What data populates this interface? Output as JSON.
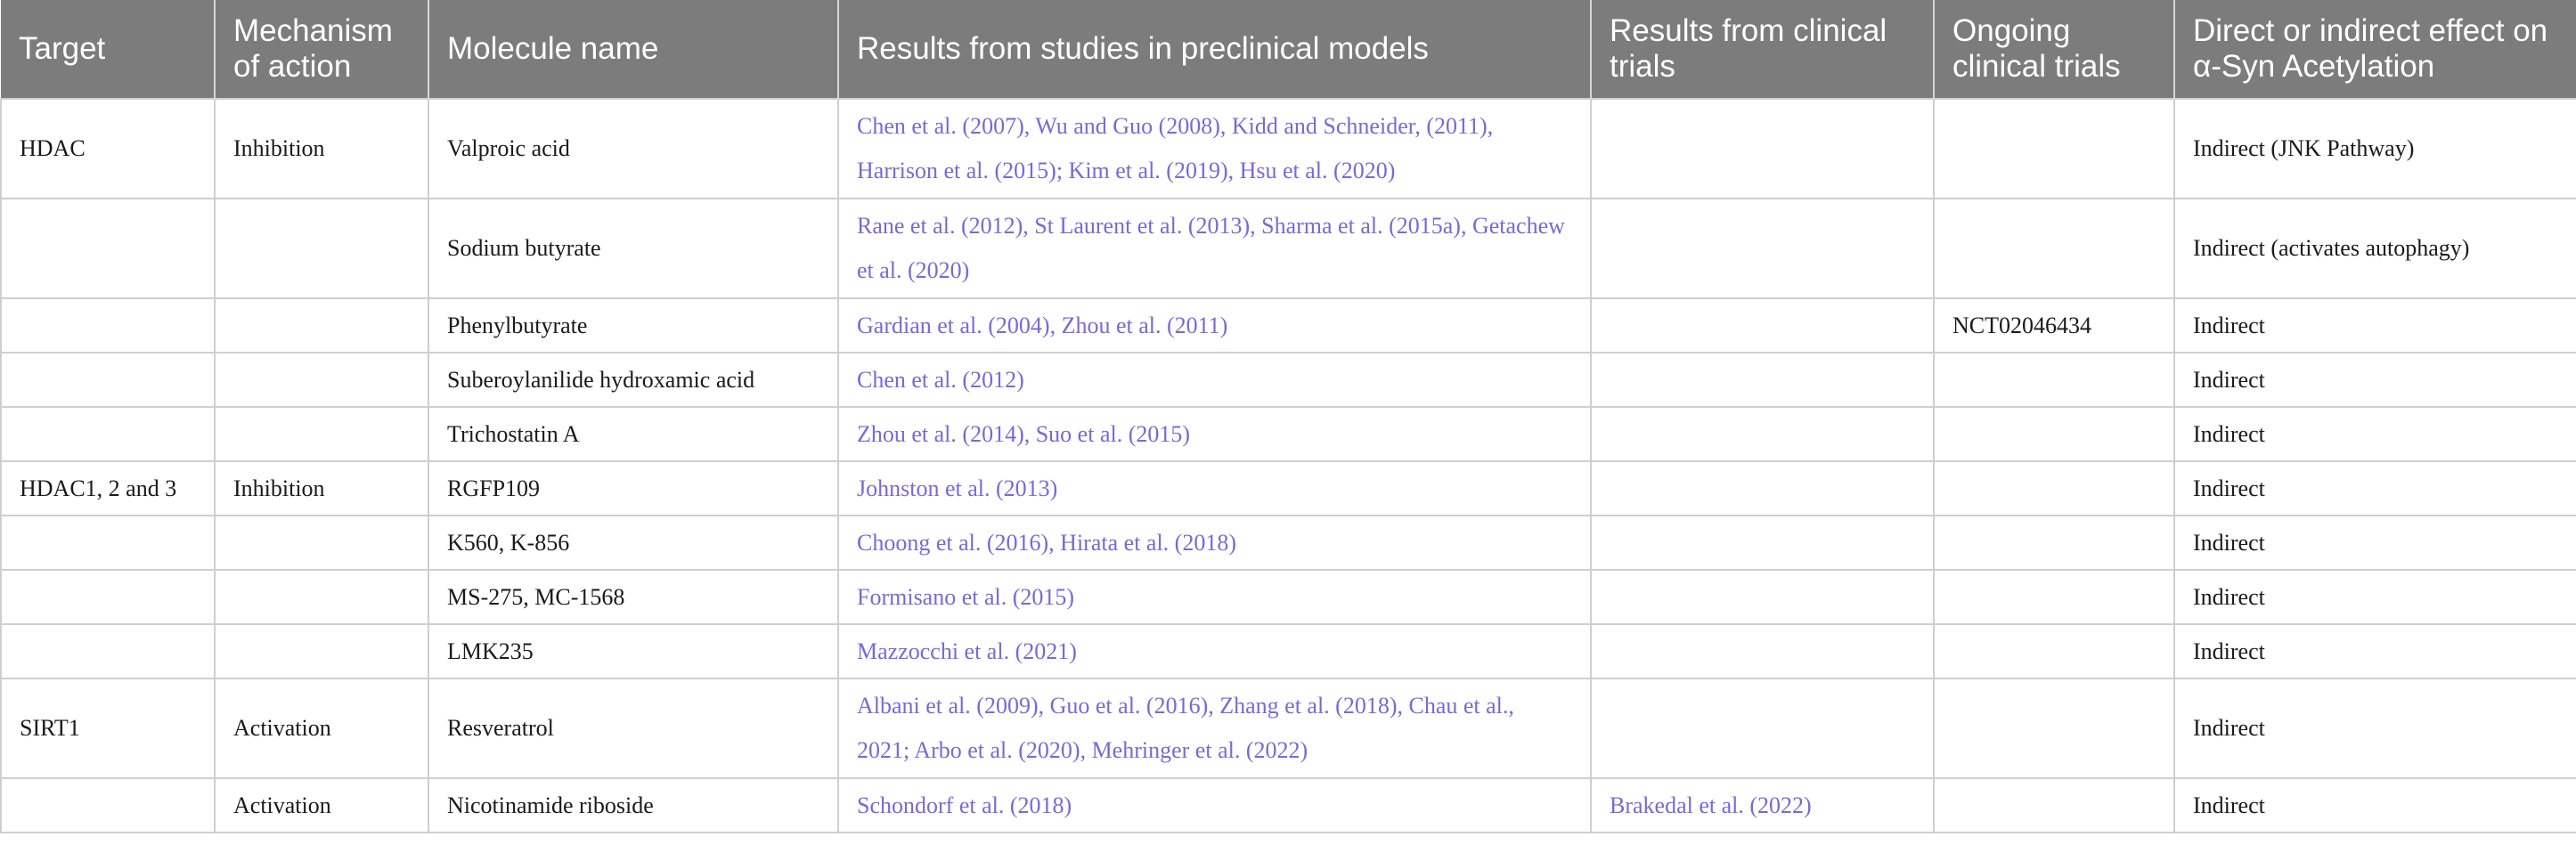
{
  "table": {
    "headers": [
      "Target",
      "Mechanism of action",
      "Molecule name",
      "Results from studies in preclinical models",
      "Results from clinical trials",
      "Ongoing clinical trials",
      "Direct or indirect effect on α-Syn Acetylation"
    ],
    "rows": [
      {
        "target": "HDAC",
        "mechanism": "Inhibition",
        "molecule": "Valproic acid",
        "preclinical": "Chen et al. (2007), Wu and Guo (2008), Kidd and Schneider, (2011), Harrison et al. (2015); Kim et al. (2019), Hsu et al. (2020)",
        "clinical": "",
        "ongoing": "",
        "effect": "Indirect (JNK Pathway)"
      },
      {
        "target": "",
        "mechanism": "",
        "molecule": "Sodium butyrate",
        "preclinical": "Rane et al. (2012), St Laurent et al. (2013), Sharma et al. (2015a), Getachew et al. (2020)",
        "clinical": "",
        "ongoing": "",
        "effect": "Indirect (activates autophagy)"
      },
      {
        "target": "",
        "mechanism": "",
        "molecule": "Phenylbutyrate",
        "preclinical": "Gardian et al. (2004), Zhou et al. (2011)",
        "clinical": "",
        "ongoing": "NCT02046434",
        "effect": "Indirect"
      },
      {
        "target": "",
        "mechanism": "",
        "molecule": "Suberoylanilide hydroxamic acid",
        "preclinical": "Chen et al. (2012)",
        "clinical": "",
        "ongoing": "",
        "effect": "Indirect"
      },
      {
        "target": "",
        "mechanism": "",
        "molecule": "Trichostatin A",
        "preclinical": "Zhou et al. (2014), Suo et al. (2015)",
        "clinical": "",
        "ongoing": "",
        "effect": "Indirect"
      },
      {
        "target": "HDAC1, 2 and 3",
        "mechanism": "Inhibition",
        "molecule": "RGFP109",
        "preclinical": "Johnston et al. (2013)",
        "clinical": "",
        "ongoing": "",
        "effect": "Indirect"
      },
      {
        "target": "",
        "mechanism": "",
        "molecule": "K560, K-856",
        "preclinical": "Choong et al. (2016), Hirata et al. (2018)",
        "clinical": "",
        "ongoing": "",
        "effect": "Indirect"
      },
      {
        "target": "",
        "mechanism": "",
        "molecule": "MS-275, MC-1568",
        "preclinical": "Formisano et al. (2015)",
        "clinical": "",
        "ongoing": "",
        "effect": "Indirect"
      },
      {
        "target": "",
        "mechanism": "",
        "molecule": "LMK235",
        "preclinical": "Mazzocchi et al. (2021)",
        "clinical": "",
        "ongoing": "",
        "effect": "Indirect"
      },
      {
        "target": "SIRT1",
        "mechanism": "Activation",
        "molecule": "Resveratrol",
        "preclinical": "Albani et al. (2009), Guo et al. (2016), Zhang et al. (2018), Chau et al., 2021; Arbo et al. (2020), Mehringer et al. (2022)",
        "clinical": "",
        "ongoing": "",
        "effect": "Indirect"
      },
      {
        "target": "",
        "mechanism": "Activation",
        "molecule": "Nicotinamide riboside",
        "preclinical": "Schondorf et al. (2018)",
        "clinical": "Brakedal et al. (2022)",
        "ongoing": "",
        "effect": "Indirect"
      }
    ]
  }
}
